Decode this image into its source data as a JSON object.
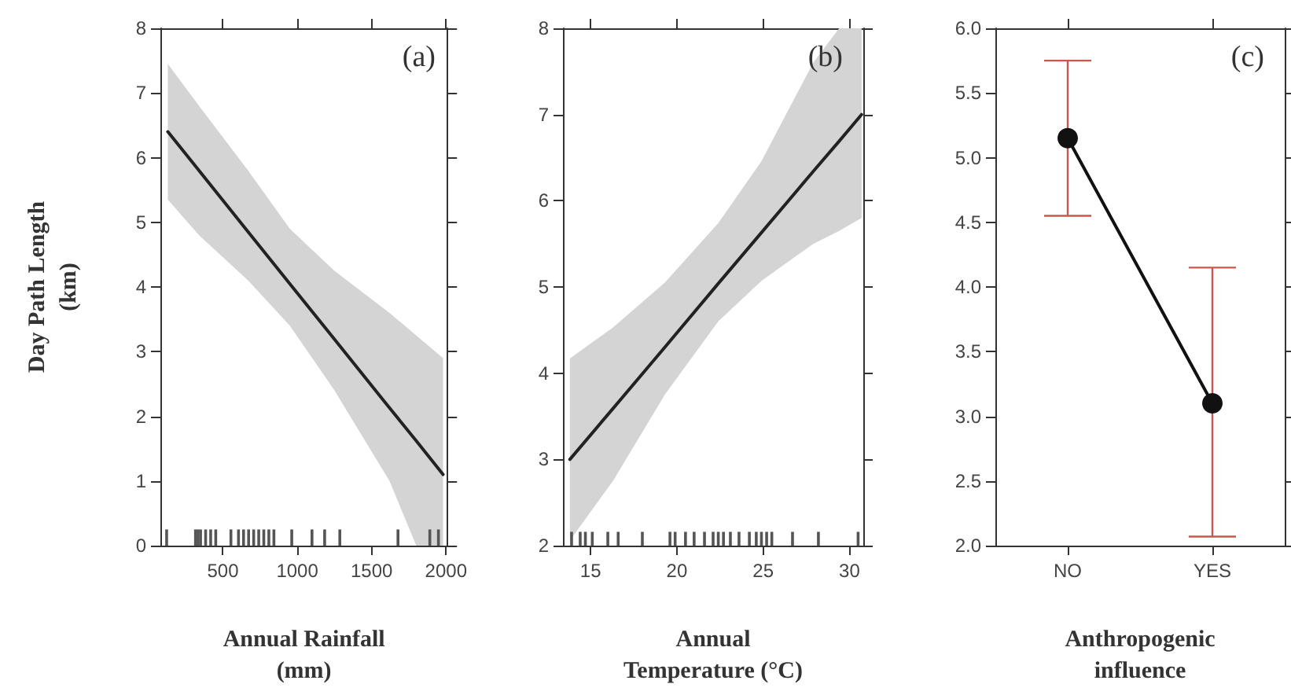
{
  "chart_data": [
    {
      "type": "line",
      "title": "(a)",
      "xlabel": "Annual Rainfall (mm)",
      "ylabel": "Day Path Length (km)",
      "xlim": [
        80,
        2010
      ],
      "ylim": [
        0,
        8
      ],
      "xticks": [
        500,
        1000,
        1500,
        2000
      ],
      "yticks": [
        0,
        1,
        2,
        3,
        4,
        5,
        6,
        7,
        8
      ],
      "grid": false,
      "series": [
        {
          "color": "#222222",
          "marker": "none",
          "x": [
            130,
            340,
            670,
            950,
            1250,
            1620,
            1800,
            1980
          ],
          "values": [
            6.4,
            5.8,
            4.85,
            4.05,
            3.19,
            2.13,
            1.62,
            1.1
          ],
          "lower": [
            5.35,
            4.8,
            4.1,
            3.4,
            2.4,
            1.0,
            0,
            0
          ],
          "upper": [
            7.45,
            6.8,
            5.8,
            4.9,
            4.25,
            3.6,
            3.25,
            2.9
          ]
        },
        {
          "type": "bar",
          "color": "#555555",
          "x": [
            122,
            316,
            333,
            350,
            384,
            418,
            452,
            554,
            605,
            639,
            673,
            707,
            741,
            775,
            809,
            843,
            963,
            1099,
            1184,
            1286,
            1677,
            1891,
            1949
          ],
          "values": [
            0.25,
            0.25,
            0.25,
            0.25,
            0.25,
            0.25,
            0.25,
            0.25,
            0.25,
            0.25,
            0.25,
            0.25,
            0.25,
            0.25,
            0.25,
            0.25,
            0.25,
            0.25,
            0.25,
            0.25,
            0.25,
            0.25,
            0.25
          ]
        }
      ]
    },
    {
      "type": "line",
      "title": "(b)",
      "xlabel": "Annual Temperature (°C)",
      "xlim": [
        13.4,
        30.8
      ],
      "ylim": [
        2,
        8
      ],
      "xticks": [
        15,
        20,
        25,
        30
      ],
      "yticks": [
        2,
        3,
        4,
        5,
        6,
        7,
        8
      ],
      "grid": false,
      "series": [
        {
          "color": "#222222",
          "marker": "none",
          "x": [
            13.8,
            16.3,
            19.3,
            22.4,
            24.9,
            27.9,
            29.4,
            30.7
          ],
          "values": [
            3.0,
            3.59,
            4.3,
            5.04,
            5.63,
            6.34,
            6.69,
            7.0
          ],
          "lower": [
            2.06,
            2.75,
            3.75,
            4.6,
            5.07,
            5.5,
            5.65,
            5.8
          ],
          "upper": [
            4.17,
            4.53,
            5.05,
            5.74,
            6.46,
            7.6,
            8.0,
            8.0
          ]
        },
        {
          "type": "bar",
          "color": "#555555",
          "x": [
            13.9,
            14.4,
            14.7,
            15.1,
            16.0,
            16.6,
            18.0,
            19.6,
            19.9,
            20.5,
            21.0,
            21.6,
            22.1,
            22.4,
            22.7,
            23.1,
            23.6,
            24.2,
            24.6,
            24.9,
            25.2,
            25.5,
            26.7,
            28.2,
            30.5
          ],
          "base": [
            2,
            2,
            2,
            2,
            2,
            2,
            2,
            2,
            2,
            2,
            2,
            2,
            2,
            2,
            2,
            2,
            2,
            2,
            2,
            2,
            2,
            2,
            2,
            2,
            2
          ],
          "values": [
            0.16,
            0.16,
            0.16,
            0.16,
            0.16,
            0.16,
            0.16,
            0.16,
            0.16,
            0.16,
            0.16,
            0.16,
            0.16,
            0.16,
            0.16,
            0.16,
            0.16,
            0.16,
            0.16,
            0.16,
            0.16,
            0.16,
            0.16,
            0.16,
            0.16
          ]
        }
      ]
    },
    {
      "type": "line",
      "title": "(c)",
      "xlabel": "Anthropogenic influence",
      "categories": [
        "NO",
        "YES"
      ],
      "ylim": [
        2,
        6
      ],
      "yticks": [
        {
          "value": 2,
          "label": "2.0"
        },
        {
          "value": 2.5,
          "label": "2.5"
        },
        {
          "value": 3,
          "label": "3.0"
        },
        {
          "value": 3.5,
          "label": "3.5"
        },
        {
          "value": 4,
          "label": "4.0"
        },
        {
          "value": 4.5,
          "label": "4.5"
        },
        {
          "value": 5,
          "label": "5.0"
        },
        {
          "value": 5.5,
          "label": "5.5"
        },
        {
          "value": 6,
          "label": "6.0"
        }
      ],
      "grid": false,
      "series": [
        {
          "color": "#111111",
          "marker": "circle",
          "values": [
            5.15,
            3.1
          ],
          "errors": [
            [
              4.55,
              5.75
            ],
            [
              2.07,
              4.15
            ]
          ]
        }
      ]
    }
  ]
}
